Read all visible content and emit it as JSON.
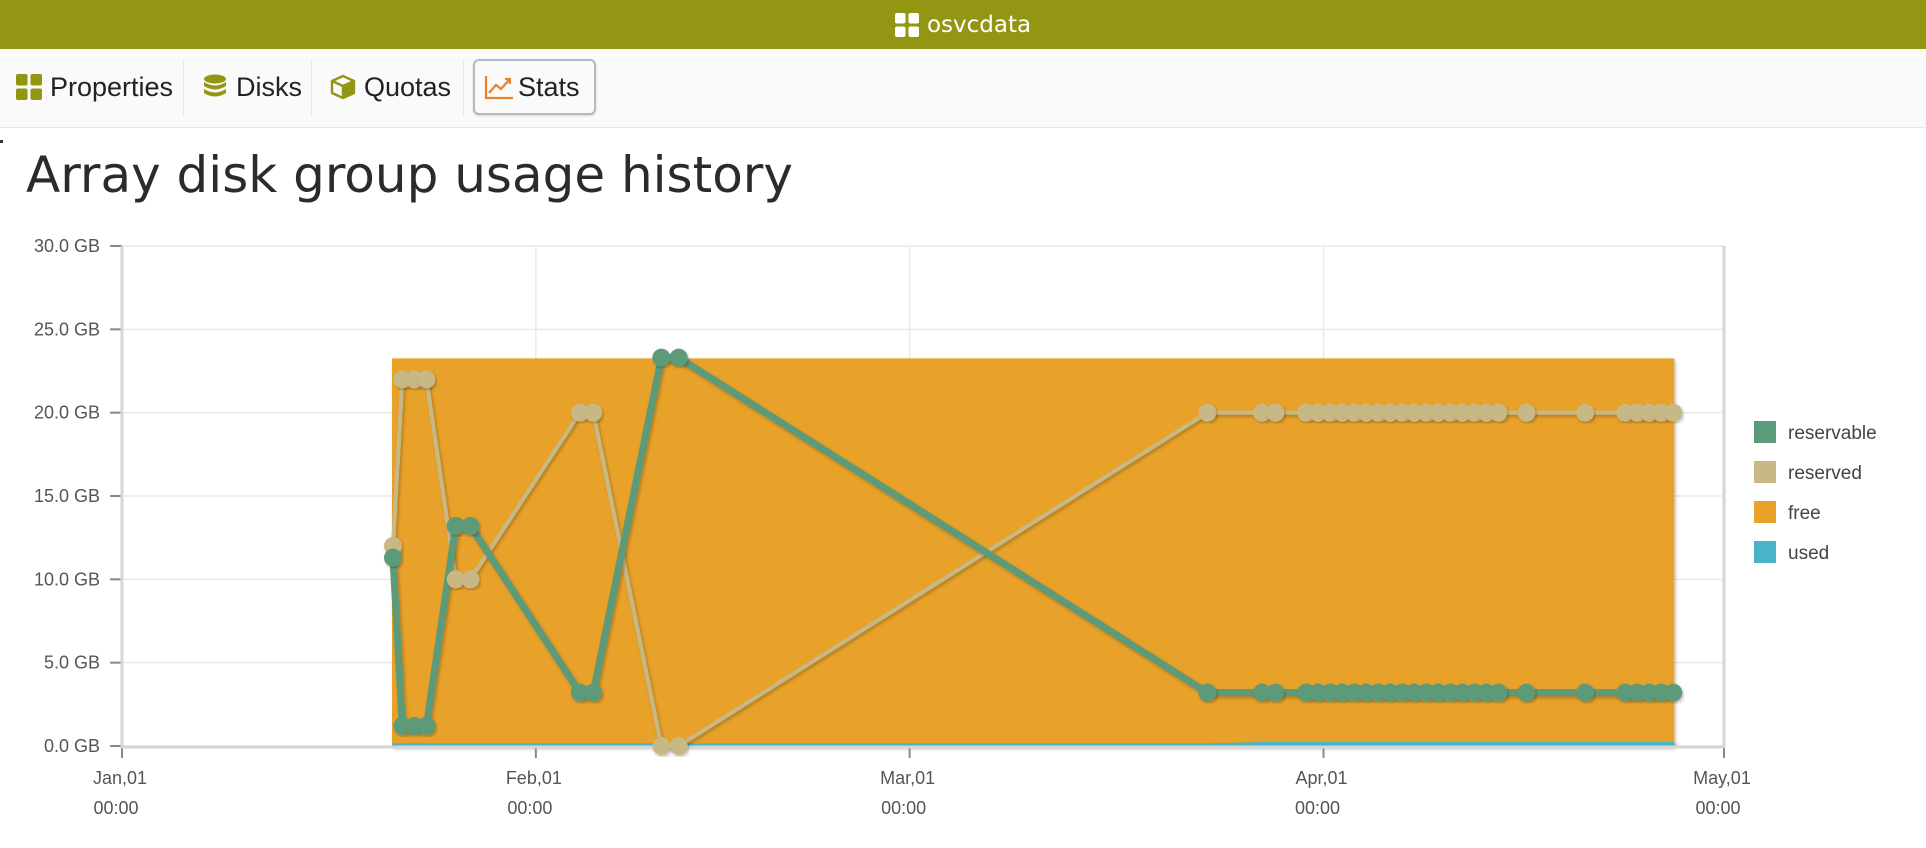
{
  "window": {
    "title": "osvcdata",
    "icon": "grid-icon",
    "colors": {
      "titlebar": "#929612",
      "tab_icon": "#929612",
      "stats_icon": "#e8832a"
    }
  },
  "tabs": [
    {
      "label": "Properties",
      "icon": "grid-icon",
      "active": false
    },
    {
      "label": "Disks",
      "icon": "database-icon",
      "active": false
    },
    {
      "label": "Quotas",
      "icon": "cube-icon",
      "active": false
    },
    {
      "label": "Stats",
      "icon": "chart-line-icon",
      "active": true
    }
  ],
  "page": {
    "title": "Array disk group usage history"
  },
  "chart_data": {
    "type": "line",
    "title": "",
    "xlabel": "",
    "ylabel": "",
    "x_axis": {
      "type": "date",
      "ticks": [
        {
          "date": "Jan,01",
          "time": "00:00",
          "day": 0
        },
        {
          "date": "Feb,01",
          "time": "00:00",
          "day": 31
        },
        {
          "date": "Mar,01",
          "time": "00:00",
          "day": 59
        },
        {
          "date": "Apr,01",
          "time": "00:00",
          "day": 90
        },
        {
          "date": "May,01",
          "time": "00:00",
          "day": 120
        }
      ],
      "range": [
        "Jan,01",
        "May,01"
      ]
    },
    "y_axis": {
      "unit": "GB",
      "ticks": [
        "0.0 GB",
        "5.0 GB",
        "10.0 GB",
        "15.0 GB",
        "20.0 GB",
        "25.0 GB",
        "30.0 GB"
      ],
      "tick_values": [
        0,
        5,
        10,
        15,
        20,
        25,
        30
      ],
      "ylim": [
        0,
        30
      ]
    },
    "grid": true,
    "legend_position": "right",
    "series": [
      {
        "name": "reservable",
        "style": "line",
        "color": "#5b9a7a",
        "points": [
          [
            20.3,
            11.3
          ],
          [
            21.0,
            1.2
          ],
          [
            21.9,
            1.2
          ],
          [
            22.8,
            1.2
          ],
          [
            25.0,
            13.2
          ],
          [
            26.1,
            13.2
          ],
          [
            34.3,
            3.2
          ],
          [
            35.3,
            3.2
          ],
          [
            40.4,
            23.3
          ],
          [
            41.7,
            23.3
          ],
          [
            81.3,
            3.2
          ],
          [
            85.4,
            3.2
          ],
          [
            86.4,
            3.2
          ],
          [
            88.7,
            3.2
          ],
          [
            89.6,
            3.2
          ],
          [
            90.5,
            3.2
          ],
          [
            91.4,
            3.2
          ],
          [
            92.3,
            3.2
          ],
          [
            93.2,
            3.2
          ],
          [
            94.1,
            3.2
          ],
          [
            95.0,
            3.2
          ],
          [
            95.9,
            3.2
          ],
          [
            96.8,
            3.2
          ],
          [
            97.7,
            3.2
          ],
          [
            98.6,
            3.2
          ],
          [
            99.5,
            3.2
          ],
          [
            100.4,
            3.2
          ],
          [
            101.3,
            3.2
          ],
          [
            102.2,
            3.2
          ],
          [
            103.1,
            3.2
          ],
          [
            105.2,
            3.2
          ],
          [
            109.6,
            3.2
          ],
          [
            112.6,
            3.2
          ],
          [
            113.5,
            3.2
          ],
          [
            114.4,
            3.2
          ],
          [
            115.3,
            3.2
          ],
          [
            116.2,
            3.2
          ]
        ]
      },
      {
        "name": "reserved",
        "style": "line",
        "color": "#c8b886",
        "points": [
          [
            20.3,
            12.0
          ],
          [
            21.0,
            22.0
          ],
          [
            21.9,
            22.0
          ],
          [
            22.8,
            22.0
          ],
          [
            25.0,
            10.0
          ],
          [
            26.1,
            10.0
          ],
          [
            34.3,
            20.0
          ],
          [
            35.3,
            20.0
          ],
          [
            40.4,
            0.0
          ],
          [
            41.7,
            0.0
          ],
          [
            81.3,
            20.0
          ],
          [
            85.4,
            20.0
          ],
          [
            86.4,
            20.0
          ],
          [
            88.7,
            20.0
          ],
          [
            89.6,
            20.0
          ],
          [
            90.5,
            20.0
          ],
          [
            91.4,
            20.0
          ],
          [
            92.3,
            20.0
          ],
          [
            93.2,
            20.0
          ],
          [
            94.1,
            20.0
          ],
          [
            95.0,
            20.0
          ],
          [
            95.9,
            20.0
          ],
          [
            96.8,
            20.0
          ],
          [
            97.7,
            20.0
          ],
          [
            98.6,
            20.0
          ],
          [
            99.5,
            20.0
          ],
          [
            100.4,
            20.0
          ],
          [
            101.3,
            20.0
          ],
          [
            102.2,
            20.0
          ],
          [
            103.1,
            20.0
          ],
          [
            105.2,
            20.0
          ],
          [
            109.6,
            20.0
          ],
          [
            112.6,
            20.0
          ],
          [
            113.5,
            20.0
          ],
          [
            114.4,
            20.0
          ],
          [
            115.3,
            20.0
          ],
          [
            116.2,
            20.0
          ]
        ]
      },
      {
        "name": "free",
        "style": "area",
        "color": "#e8a22a",
        "points": [
          [
            20.3,
            23.2
          ],
          [
            116.2,
            23.2
          ]
        ]
      },
      {
        "name": "used",
        "style": "area",
        "color": "#4ab3c8",
        "points": [
          [
            20.3,
            0.1
          ],
          [
            81.3,
            0.1
          ],
          [
            86.4,
            0.2
          ],
          [
            116.2,
            0.2
          ]
        ]
      }
    ]
  }
}
